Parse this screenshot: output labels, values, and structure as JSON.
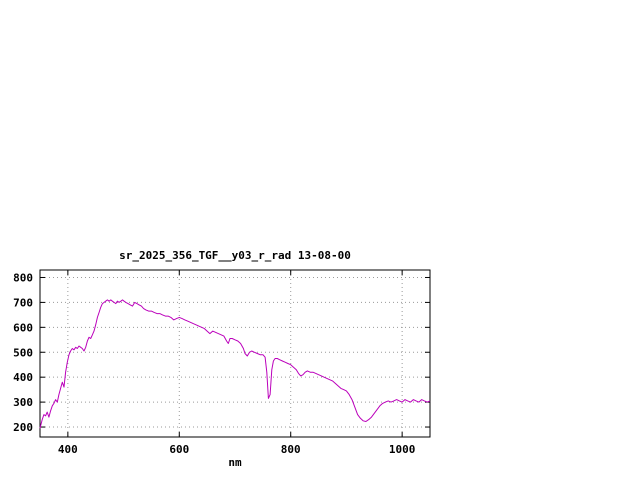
{
  "chart_data": {
    "type": "line",
    "title": "sr_2025_356_TGF__y03_r_rad 13-08-00",
    "xlabel": "nm",
    "ylabel": "",
    "xlim": [
      350,
      1050
    ],
    "ylim": [
      160,
      830
    ],
    "xticks": [
      400,
      600,
      800,
      1000
    ],
    "yticks": [
      200,
      300,
      400,
      500,
      600,
      700,
      800
    ],
    "grid": true,
    "legend_position": "none",
    "line_color": "#bb00bb",
    "frame_color": "#000000",
    "grid_color": "#9a9a9a",
    "x": [
      350,
      354,
      357,
      360,
      363,
      366,
      369,
      372,
      375,
      378,
      381,
      384,
      387,
      390,
      393,
      396,
      399,
      402,
      405,
      408,
      411,
      414,
      417,
      420,
      423,
      426,
      429,
      432,
      435,
      438,
      441,
      444,
      447,
      450,
      453,
      456,
      459,
      462,
      465,
      468,
      471,
      474,
      477,
      480,
      483,
      486,
      489,
      492,
      495,
      498,
      501,
      504,
      508,
      512,
      516,
      520,
      524,
      528,
      532,
      536,
      540,
      545,
      550,
      555,
      560,
      565,
      570,
      575,
      580,
      585,
      590,
      595,
      600,
      605,
      610,
      615,
      620,
      625,
      630,
      635,
      640,
      645,
      650,
      655,
      660,
      665,
      670,
      675,
      680,
      685,
      688,
      691,
      695,
      700,
      705,
      710,
      715,
      718,
      722,
      726,
      730,
      735,
      740,
      745,
      750,
      754,
      757,
      760,
      763,
      766,
      769,
      772,
      776,
      780,
      785,
      790,
      795,
      800,
      805,
      810,
      814,
      818,
      822,
      826,
      830,
      835,
      840,
      845,
      850,
      855,
      860,
      865,
      870,
      875,
      880,
      885,
      890,
      895,
      900,
      905,
      910,
      915,
      920,
      925,
      930,
      935,
      940,
      945,
      950,
      955,
      960,
      965,
      970,
      975,
      980,
      985,
      990,
      995,
      1000,
      1005,
      1010,
      1015,
      1020,
      1025,
      1030,
      1035,
      1040,
      1045,
      1050
    ],
    "y": [
      195,
      230,
      250,
      245,
      260,
      240,
      265,
      285,
      295,
      310,
      300,
      330,
      355,
      380,
      360,
      420,
      460,
      490,
      505,
      515,
      510,
      520,
      515,
      525,
      520,
      515,
      505,
      520,
      545,
      560,
      555,
      570,
      585,
      610,
      640,
      660,
      680,
      695,
      700,
      705,
      710,
      705,
      710,
      705,
      700,
      695,
      705,
      700,
      705,
      710,
      705,
      700,
      695,
      690,
      685,
      700,
      695,
      690,
      685,
      675,
      670,
      665,
      665,
      660,
      655,
      655,
      650,
      645,
      645,
      640,
      630,
      635,
      640,
      635,
      630,
      625,
      620,
      615,
      610,
      605,
      600,
      595,
      585,
      575,
      585,
      580,
      575,
      570,
      565,
      545,
      535,
      555,
      555,
      550,
      545,
      535,
      515,
      495,
      485,
      500,
      505,
      500,
      495,
      490,
      490,
      480,
      420,
      315,
      330,
      430,
      465,
      475,
      475,
      470,
      465,
      460,
      455,
      450,
      440,
      430,
      415,
      405,
      410,
      420,
      425,
      420,
      420,
      415,
      410,
      405,
      400,
      395,
      390,
      385,
      375,
      365,
      355,
      350,
      345,
      330,
      310,
      280,
      250,
      235,
      225,
      222,
      230,
      240,
      255,
      270,
      285,
      295,
      300,
      305,
      300,
      305,
      310,
      305,
      300,
      310,
      305,
      300,
      310,
      305,
      300,
      310,
      305,
      300,
      305
    ]
  }
}
